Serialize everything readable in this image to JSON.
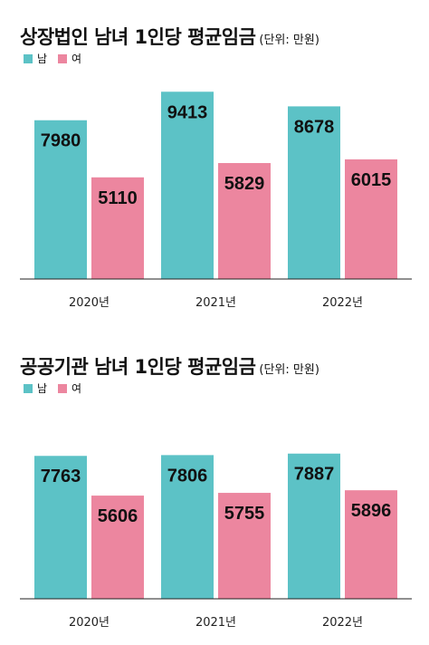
{
  "colors": {
    "male": "#5cc2c6",
    "female": "#ec869f",
    "axis": "#222222"
  },
  "chart_data": [
    {
      "type": "bar",
      "title": "상장법인 남녀 1인당 평균임금",
      "unit": "(단위: 만원)",
      "categories": [
        "2020년",
        "2021년",
        "2022년"
      ],
      "series": [
        {
          "name": "남",
          "values": [
            7980,
            9413,
            8678
          ]
        },
        {
          "name": "여",
          "values": [
            5110,
            5829,
            6015
          ]
        }
      ],
      "ylim": [
        0,
        10700
      ],
      "grid": false,
      "legend": "top-left"
    },
    {
      "type": "bar",
      "title": "공공기관 남녀 1인당 평균임금",
      "unit": "(단위: 만원)",
      "categories": [
        "2020년",
        "2021년",
        "2022년"
      ],
      "series": [
        {
          "name": "남",
          "values": [
            7763,
            7806,
            7887
          ]
        },
        {
          "name": "여",
          "values": [
            5606,
            5755,
            5896
          ]
        }
      ],
      "ylim": [
        0,
        9350
      ],
      "grid": false,
      "legend": "top-left"
    }
  ]
}
